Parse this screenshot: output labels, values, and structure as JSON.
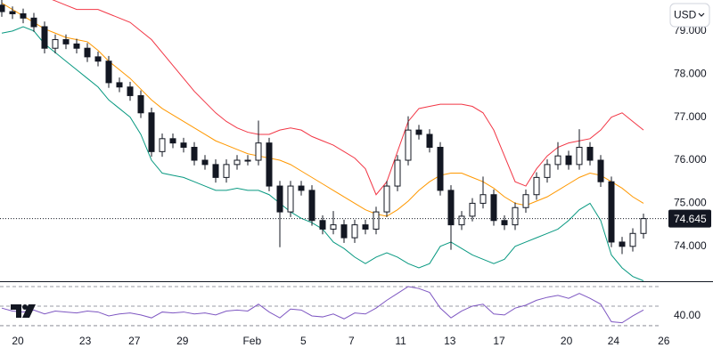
{
  "currency": "USD",
  "chart_data": {
    "type": "candlestick",
    "x": [
      0,
      1,
      2,
      3,
      4,
      5,
      6,
      7,
      8,
      9,
      10,
      11,
      12,
      13,
      14,
      15,
      16,
      17,
      18,
      19,
      20,
      21,
      22,
      23,
      24,
      25,
      26,
      27,
      28,
      29,
      30,
      31,
      32,
      33,
      34,
      35,
      36,
      37,
      38,
      39,
      40,
      41,
      42,
      43,
      44,
      45,
      46,
      47,
      48,
      49,
      50,
      51,
      52,
      53,
      54,
      55,
      56,
      57,
      58,
      59,
      60
    ],
    "open": [
      79.6,
      79.45,
      79.4,
      79.3,
      79.1,
      78.6,
      78.8,
      78.7,
      78.6,
      78.4,
      78.3,
      77.8,
      77.7,
      77.5,
      77.1,
      76.2,
      76.5,
      76.4,
      76.3,
      76.0,
      75.9,
      75.6,
      75.9,
      76.0,
      76.0,
      76.4,
      75.4,
      74.8,
      75.4,
      75.3,
      74.6,
      74.4,
      74.5,
      74.2,
      74.5,
      74.4,
      74.8,
      75.4,
      76.0,
      76.7,
      76.6,
      76.3,
      75.3,
      74.5,
      74.7,
      75.0,
      75.2,
      74.6,
      74.5,
      74.9,
      75.2,
      75.6,
      75.9,
      76.1,
      75.9,
      76.3,
      76.0,
      75.5,
      74.1,
      74.0,
      74.3
    ],
    "high": [
      79.72,
      79.57,
      79.52,
      79.42,
      79.22,
      78.92,
      78.92,
      78.82,
      78.72,
      78.52,
      78.42,
      77.92,
      77.82,
      77.62,
      77.22,
      76.62,
      76.62,
      76.52,
      76.42,
      76.12,
      76.02,
      76.02,
      76.12,
      76.12,
      76.92,
      76.52,
      75.52,
      75.52,
      75.52,
      75.42,
      74.72,
      74.82,
      74.62,
      74.62,
      74.62,
      74.92,
      75.52,
      76.12,
      77.02,
      76.82,
      76.72,
      76.42,
      75.42,
      74.82,
      75.12,
      75.62,
      75.32,
      74.72,
      75.02,
      75.32,
      75.72,
      76.02,
      76.42,
      76.22,
      76.72,
      76.42,
      76.12,
      75.62,
      74.22,
      74.42,
      74.76
    ],
    "low": [
      79.33,
      79.28,
      79.18,
      78.98,
      78.48,
      78.48,
      78.58,
      78.48,
      78.28,
      78.18,
      77.68,
      77.58,
      77.38,
      76.98,
      76.08,
      76.08,
      76.28,
      76.18,
      75.88,
      75.78,
      75.48,
      75.48,
      75.78,
      75.88,
      75.88,
      75.28,
      73.98,
      74.68,
      75.18,
      74.48,
      74.28,
      74.28,
      74.08,
      74.08,
      74.28,
      74.28,
      74.68,
      75.28,
      75.88,
      76.48,
      76.18,
      75.18,
      73.92,
      74.38,
      74.58,
      74.88,
      74.48,
      74.38,
      74.38,
      74.78,
      75.08,
      75.48,
      75.78,
      75.78,
      75.78,
      75.88,
      75.38,
      73.98,
      73.82,
      73.88,
      74.18
    ],
    "close": [
      79.45,
      79.4,
      79.3,
      79.1,
      78.6,
      78.8,
      78.7,
      78.6,
      78.4,
      78.3,
      77.8,
      77.7,
      77.5,
      77.1,
      76.2,
      76.5,
      76.4,
      76.3,
      76.0,
      75.9,
      75.6,
      75.9,
      76.0,
      76.0,
      76.4,
      75.4,
      74.8,
      75.4,
      75.3,
      74.6,
      74.4,
      74.5,
      74.2,
      74.5,
      74.4,
      74.8,
      75.4,
      76.0,
      76.7,
      76.6,
      76.3,
      75.3,
      74.5,
      74.7,
      75.0,
      75.2,
      74.6,
      74.5,
      74.9,
      75.2,
      75.6,
      75.9,
      76.1,
      75.9,
      76.3,
      76.0,
      75.5,
      74.1,
      74.0,
      74.3,
      74.645
    ],
    "up_color": "#ffffff",
    "down_color": "#131722",
    "bands": {
      "upper": {
        "color": "#f23645",
        "values": [
          80.2,
          80.1,
          80.0,
          79.9,
          79.8,
          79.7,
          79.6,
          79.5,
          79.5,
          79.5,
          79.4,
          79.3,
          79.2,
          79.0,
          78.8,
          78.5,
          78.2,
          77.9,
          77.6,
          77.35,
          77.1,
          76.9,
          76.75,
          76.65,
          76.6,
          76.6,
          76.7,
          76.75,
          76.7,
          76.55,
          76.45,
          76.35,
          76.2,
          76.05,
          75.8,
          75.2,
          75.5,
          76.2,
          76.9,
          77.2,
          77.25,
          77.3,
          77.3,
          77.3,
          77.25,
          77.1,
          76.7,
          76.1,
          75.5,
          75.4,
          75.8,
          76.1,
          76.3,
          76.4,
          76.45,
          76.5,
          76.7,
          77.0,
          77.1,
          76.9,
          76.7
        ]
      },
      "middle": {
        "color": "#ff9800",
        "values": [
          79.65,
          79.5,
          79.35,
          79.2,
          79.05,
          78.95,
          78.85,
          78.8,
          78.75,
          78.55,
          78.3,
          78.1,
          77.9,
          77.65,
          77.4,
          77.2,
          77.05,
          76.9,
          76.75,
          76.6,
          76.45,
          76.35,
          76.25,
          76.15,
          76.1,
          76.05,
          76.0,
          75.9,
          75.75,
          75.6,
          75.45,
          75.3,
          75.15,
          75.0,
          74.85,
          74.75,
          74.7,
          74.85,
          75.05,
          75.3,
          75.5,
          75.65,
          75.7,
          75.7,
          75.6,
          75.5,
          75.35,
          75.15,
          75.0,
          74.95,
          75.05,
          75.15,
          75.3,
          75.45,
          75.6,
          75.7,
          75.65,
          75.5,
          75.35,
          75.15,
          75.0
        ]
      },
      "lower": {
        "color": "#089981",
        "values": [
          78.95,
          79.0,
          79.1,
          79.0,
          78.7,
          78.5,
          78.3,
          78.1,
          77.9,
          77.7,
          77.4,
          77.2,
          77.0,
          76.6,
          76.0,
          75.7,
          75.65,
          75.6,
          75.5,
          75.4,
          75.3,
          75.3,
          75.35,
          75.3,
          75.3,
          75.2,
          75.0,
          74.8,
          74.65,
          74.55,
          74.4,
          74.1,
          73.95,
          73.75,
          73.6,
          73.75,
          73.85,
          73.75,
          73.6,
          73.5,
          73.6,
          74.0,
          74.1,
          73.95,
          73.8,
          73.7,
          73.6,
          73.7,
          74.0,
          74.1,
          74.2,
          74.3,
          74.4,
          74.6,
          74.85,
          75.0,
          74.6,
          73.8,
          73.5,
          73.3,
          73.2
        ]
      }
    },
    "xlim": [
      -0.1667,
      66.5
    ],
    "ylim": [
      73.19,
      79.72
    ],
    "yticks": [
      {
        "value": 74,
        "label": "74.000"
      },
      {
        "value": 75,
        "label": "75.000"
      },
      {
        "value": 76,
        "label": "76.000"
      },
      {
        "value": 77,
        "label": "77.000"
      },
      {
        "value": 78,
        "label": "78.000"
      },
      {
        "value": 79,
        "label": "79.000"
      }
    ],
    "xticks": [
      {
        "value": 1.5,
        "label": "20"
      },
      {
        "value": 7.8,
        "label": "23"
      },
      {
        "value": 12.4,
        "label": "27"
      },
      {
        "value": 16.9,
        "label": "29"
      },
      {
        "value": 23.4,
        "label": "Feb"
      },
      {
        "value": 28.2,
        "label": "5"
      },
      {
        "value": 32.7,
        "label": "7"
      },
      {
        "value": 37.3,
        "label": "11"
      },
      {
        "value": 41.9,
        "label": "13"
      },
      {
        "value": 46.5,
        "label": "17"
      },
      {
        "value": 52.8,
        "label": "20"
      },
      {
        "value": 57.2,
        "label": "24"
      },
      {
        "value": 61.9,
        "label": "26"
      }
    ],
    "grid": false,
    "rsi": {
      "color": "#7e57c2",
      "values": [
        48,
        45,
        44,
        46,
        42,
        45,
        44,
        43,
        45,
        44,
        40,
        42,
        43,
        41,
        38,
        44,
        43,
        44,
        42,
        43,
        41,
        45,
        46,
        45,
        52,
        44,
        38,
        47,
        46,
        40,
        39,
        42,
        37,
        43,
        42,
        48,
        56,
        63,
        70,
        68,
        64,
        48,
        38,
        45,
        50,
        52,
        42,
        41,
        48,
        51,
        56,
        59,
        61,
        58,
        63,
        58,
        52,
        34,
        33,
        40,
        46
      ],
      "ylim": [
        24.5,
        75.45
      ],
      "levels": [
        70,
        50,
        30
      ],
      "yticks": [
        {
          "value": 40,
          "label": "40.00"
        }
      ]
    }
  }
}
